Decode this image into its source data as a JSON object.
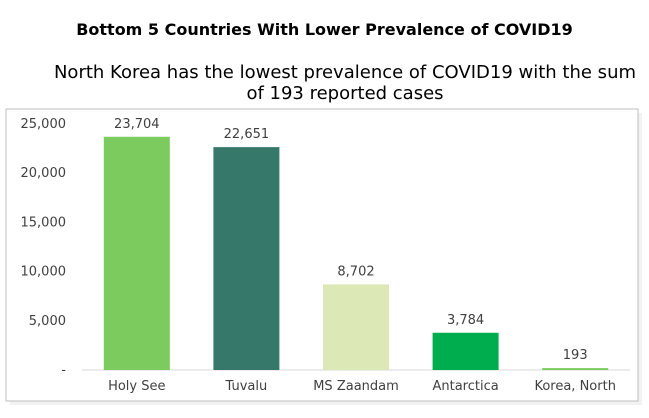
{
  "title": "Bottom 5 Countries With Lower Prevalence of COVID19",
  "subtitle_lines": [
    "North Korea has the lowest  prevalence of COVID19 with the sum",
    "of 193 reported cases"
  ],
  "colors": {
    "bars": [
      "#7CCB5E",
      "#36796B",
      "#DCE9B7",
      "#00AD4E",
      "#7CCB5E"
    ],
    "frame": "#BFBFBF"
  },
  "chart_data": {
    "type": "bar",
    "title": "Bottom 5 Countries With Lower Prevalence of COVID19",
    "categories": [
      "Holy See",
      "Tuvalu",
      "MS Zaandam",
      "Antarctica",
      "Korea, North"
    ],
    "values": [
      23704,
      22651,
      8702,
      3784,
      193
    ],
    "value_labels": [
      "23,704",
      "22,651",
      "8,702",
      "3,784",
      "193"
    ],
    "ylim": [
      0,
      25000
    ],
    "yticks": [
      0,
      5000,
      10000,
      15000,
      20000,
      25000
    ],
    "ytick_labels": [
      "-",
      "5,000",
      "10,000",
      "15,000",
      "20,000",
      "25,000"
    ],
    "grid": false,
    "legend": "none"
  }
}
